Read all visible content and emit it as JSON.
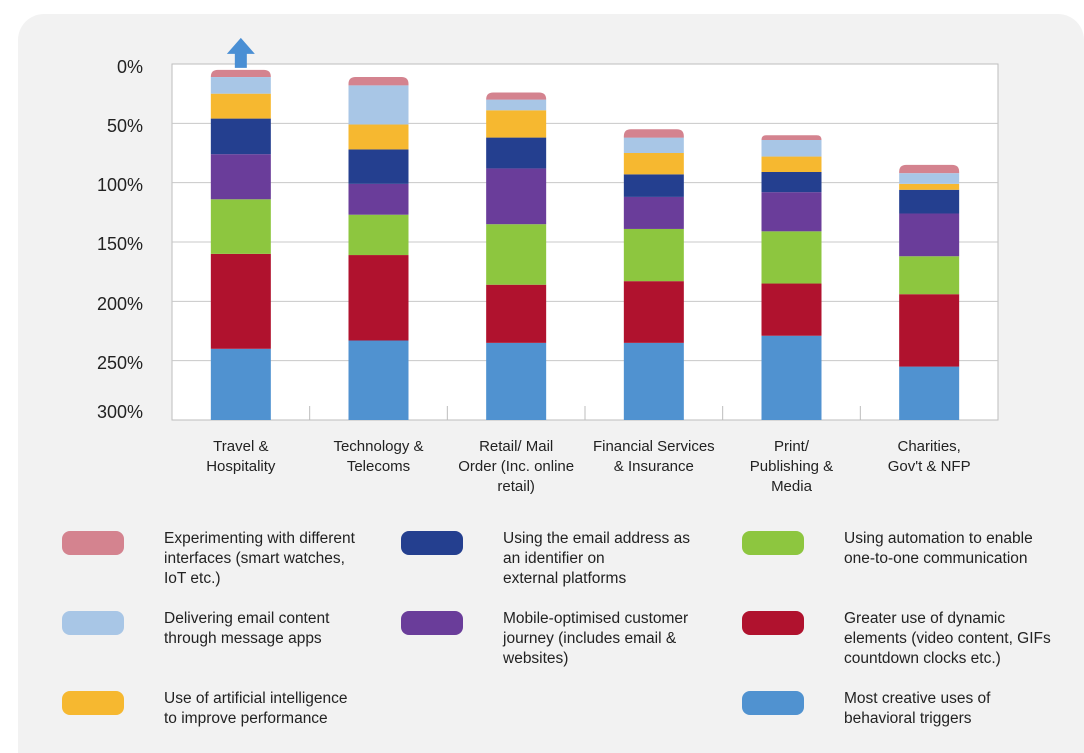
{
  "chart_data": {
    "type": "bar",
    "stacked": true,
    "categories": [
      "Travel & Hospitality",
      "Technology & Telecoms",
      "Retail/ Mail Order (Inc. online retail)",
      "Financial Services & Insurance",
      "Print/ Publishing & Media",
      "Charities, Gov't & NFP"
    ],
    "category_lines": [
      [
        "Travel &",
        "Hospitality"
      ],
      [
        "Technology &",
        "Telecoms"
      ],
      [
        "Retail/ Mail",
        "Order (Inc. online",
        "retail)"
      ],
      [
        "Financial Services",
        "& Insurance"
      ],
      [
        "Print/",
        "Publishing &",
        "Media"
      ],
      [
        "Charities,",
        "Gov't & NFP"
      ]
    ],
    "yticks": [
      "0%",
      "50%",
      "100%",
      "150%",
      "200%",
      "250%",
      "300%"
    ],
    "ylim": [
      0,
      300
    ],
    "series": [
      {
        "name": "Most creative uses of behavioral triggers",
        "color": "#5092d0",
        "values": [
          60,
          67,
          65,
          65,
          71,
          45
        ]
      },
      {
        "name": "Greater use of dynamic elements (video content, GIFs countdown clocks etc.)",
        "color": "#b0122e",
        "values": [
          80,
          72,
          49,
          52,
          44,
          61
        ]
      },
      {
        "name": "Using automation to enable one-to-one communication",
        "color": "#8dc63f",
        "values": [
          46,
          34,
          51,
          44,
          44,
          32
        ]
      },
      {
        "name": "Mobile-optimised customer journey (includes email & websites)",
        "color": "#6a3d9a",
        "values": [
          38,
          26,
          47,
          27,
          33,
          36
        ]
      },
      {
        "name": "Using the email address as an identifier on external platforms",
        "color": "#243f8f",
        "values": [
          30,
          29,
          26,
          19,
          17,
          20
        ]
      },
      {
        "name": "Use of artificial intelligence to improve performance",
        "color": "#f6b830",
        "values": [
          21,
          21,
          23,
          18,
          13,
          5
        ]
      },
      {
        "name": "Delivering email content through message apps",
        "color": "#a8c6e6",
        "values": [
          14,
          33,
          9,
          13,
          14,
          9
        ]
      },
      {
        "name": "Experimenting with different interfaces (smart watches, IoT etc.)",
        "color": "#d4838f",
        "values": [
          6,
          7,
          6,
          7,
          4,
          7
        ]
      }
    ],
    "annotation": "up-arrow-above-first-bar",
    "grid": true,
    "legend_position": "bottom"
  },
  "legend": [
    {
      "lines": [
        "Experimenting with different",
        "interfaces (smart watches,",
        "IoT etc.)"
      ],
      "color": "#d4838f"
    },
    {
      "lines": [
        "Using the email address as",
        "an identifier on",
        "external platforms"
      ],
      "color": "#243f8f"
    },
    {
      "lines": [
        "Using automation to enable",
        "one-to-one communication"
      ],
      "color": "#8dc63f"
    },
    {
      "lines": [
        "Delivering email content",
        "through message apps"
      ],
      "color": "#a8c6e6"
    },
    {
      "lines": [
        "Mobile-optimised customer",
        "journey (includes email &",
        "websites)"
      ],
      "color": "#6a3d9a"
    },
    {
      "lines": [
        "Greater use of dynamic",
        "elements (video content, GIFs",
        "countdown clocks etc.)"
      ],
      "color": "#b0122e"
    },
    {
      "lines": [
        "Use of artificial intelligence",
        "to improve performance"
      ],
      "color": "#f6b830"
    },
    {
      "lines": [
        "Most creative uses of",
        "behavioral triggers"
      ],
      "color": "#5092d0"
    }
  ]
}
